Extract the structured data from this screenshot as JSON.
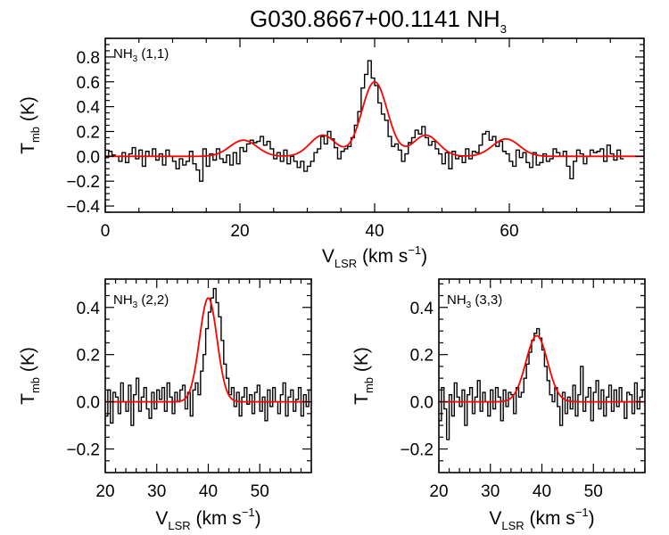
{
  "figure": {
    "title": {
      "main": "G030.8667+00.1141 NH",
      "sub": "3"
    }
  },
  "chart_data": [
    {
      "type": "line",
      "panel_label": {
        "pre": "NH",
        "sub": "3",
        "post": " (1,1)"
      },
      "xlabel": {
        "pre": "V",
        "sub": "LSR",
        "post": " (km s",
        "sup": "−1",
        "close": ")"
      },
      "ylabel": {
        "pre": "T",
        "sub": "mb",
        "post": " (K)"
      },
      "xlim": [
        0,
        80
      ],
      "ylim": [
        -0.45,
        0.95
      ],
      "xticks": [
        0,
        20,
        40,
        60
      ],
      "xtick_labels": [
        "0",
        "20",
        "40",
        "60"
      ],
      "yticks": [
        -0.4,
        -0.2,
        0.0,
        0.2,
        0.4,
        0.6,
        0.8
      ],
      "ytick_labels": [
        "−0.4",
        "−0.2",
        "0.0",
        "0.2",
        "0.4",
        "0.6",
        "0.8"
      ],
      "series": [
        {
          "color": "#000000",
          "style": "histogram",
          "x_start": 0,
          "dx": 0.5,
          "y": [
            -0.01,
            0.04,
            0.01,
            0.0,
            -0.04,
            0.03,
            -0.05,
            0.02,
            0.07,
            -0.02,
            0.05,
            -0.08,
            0.04,
            0.0,
            0.06,
            -0.03,
            0.02,
            -0.07,
            0.05,
            0.0,
            -0.04,
            -0.1,
            -0.02,
            -0.07,
            -0.04,
            0.04,
            -0.06,
            -0.11,
            -0.2,
            0.06,
            -0.08,
            0.02,
            -0.03,
            0.06,
            -0.02,
            -0.05,
            0.01,
            -0.07,
            0.03,
            -0.06,
            0.07,
            0.04,
            0.1,
            0.13,
            0.11,
            0.12,
            0.16,
            0.09,
            0.12,
            0.06,
            -0.02,
            0.03,
            -0.04,
            0.05,
            -0.06,
            0.0,
            -0.04,
            -0.09,
            -0.04,
            -0.12,
            -0.08,
            -0.04,
            0.03,
            0.06,
            0.16,
            0.1,
            0.2,
            0.14,
            0.07,
            -0.02,
            0.04,
            0.06,
            0.08,
            0.15,
            0.25,
            0.36,
            0.55,
            0.66,
            0.77,
            0.63,
            0.57,
            0.43,
            0.34,
            0.29,
            0.16,
            0.08,
            0.1,
            0.05,
            -0.04,
            0.02,
            0.11,
            0.15,
            0.21,
            0.18,
            0.24,
            0.15,
            0.09,
            0.12,
            0.06,
            0.02,
            -0.06,
            0.03,
            -0.1,
            0.04,
            -0.02,
            0.0,
            -0.05,
            0.06,
            -0.02,
            0.04,
            0.03,
            0.09,
            0.18,
            0.2,
            0.13,
            0.16,
            0.08,
            0.12,
            0.04,
            0.02,
            -0.04,
            -0.08,
            0.05,
            -0.01,
            0.03,
            -0.05,
            -0.09,
            0.03,
            -0.07,
            -0.05,
            0.02,
            -0.04,
            -0.02,
            0.06,
            0.03,
            0.0,
            0.04,
            -0.08,
            -0.18,
            -0.04,
            0.05,
            0.02,
            -0.06,
            0.0,
            0.05,
            0.03,
            0.04,
            0.06,
            -0.04,
            0.09,
            0.02,
            -0.03,
            0.05,
            -0.02
          ]
        },
        {
          "color": "#ff0000",
          "style": "gaussian_fit",
          "components": [
            {
              "center": 20.5,
              "amp": 0.13,
              "sigma": 2.0
            },
            {
              "center": 32.3,
              "amp": 0.17,
              "sigma": 1.9
            },
            {
              "center": 40.0,
              "amp": 0.6,
              "sigma": 1.9
            },
            {
              "center": 47.6,
              "amp": 0.17,
              "sigma": 1.9
            },
            {
              "center": 59.5,
              "amp": 0.14,
              "sigma": 2.0
            }
          ]
        }
      ]
    },
    {
      "type": "line",
      "panel_label": {
        "pre": "NH",
        "sub": "3",
        "post": " (2,2)"
      },
      "xlabel": {
        "pre": "V",
        "sub": "LSR",
        "post": " (km s",
        "sup": "−1",
        "close": ")"
      },
      "ylabel": {
        "pre": "T",
        "sub": "mb",
        "post": " (K)"
      },
      "xlim": [
        20,
        60
      ],
      "ylim": [
        -0.3,
        0.52
      ],
      "xticks": [
        20,
        30,
        40,
        50
      ],
      "xtick_labels": [
        "20",
        "30",
        "40",
        "50"
      ],
      "yticks": [
        -0.2,
        0.0,
        0.2,
        0.4
      ],
      "ytick_labels": [
        "−0.2",
        "0.0",
        "0.2",
        "0.4"
      ],
      "series": [
        {
          "color": "#000000",
          "style": "histogram",
          "x_start": 20,
          "dx": 0.5,
          "y": [
            -0.06,
            0.05,
            -0.09,
            0.04,
            0.02,
            -0.05,
            0.08,
            0.0,
            -0.04,
            0.07,
            -0.1,
            0.03,
            0.1,
            -0.04,
            0.02,
            0.06,
            -0.03,
            -0.07,
            0.04,
            -0.03,
            0.05,
            0.01,
            0.06,
            -0.04,
            0.08,
            0.02,
            -0.05,
            0.04,
            0.0,
            0.05,
            0.07,
            -0.03,
            0.04,
            -0.06,
            0.05,
            0.08,
            0.03,
            0.13,
            0.2,
            0.31,
            0.38,
            0.44,
            0.48,
            0.42,
            0.36,
            0.26,
            0.16,
            0.1,
            0.03,
            0.06,
            -0.02,
            0.04,
            -0.06,
            0.02,
            0.06,
            -0.01,
            0.03,
            -0.05,
            0.04,
            0.07,
            -0.04,
            0.02,
            -0.08,
            0.05,
            -0.02,
            0.06,
            0.0,
            -0.05,
            0.03,
            0.08,
            -0.06,
            0.02,
            0.05,
            -0.04,
            0.01,
            0.06,
            -0.06,
            0.03,
            -0.02,
            0.05
          ]
        },
        {
          "color": "#ff0000",
          "style": "gaussian_fit",
          "components": [
            {
              "center": 40.0,
              "amp": 0.44,
              "sigma": 1.7
            }
          ]
        }
      ]
    },
    {
      "type": "line",
      "panel_label": {
        "pre": "NH",
        "sub": "3",
        "post": " (3,3)"
      },
      "xlabel": {
        "pre": "V",
        "sub": "LSR",
        "post": " (km s",
        "sup": "−1",
        "close": ")"
      },
      "ylabel": {
        "pre": "T",
        "sub": "mb",
        "post": " (K)"
      },
      "xlim": [
        20,
        60
      ],
      "ylim": [
        -0.3,
        0.52
      ],
      "xticks": [
        20,
        30,
        40,
        50
      ],
      "xtick_labels": [
        "20",
        "30",
        "40",
        "50"
      ],
      "yticks": [
        -0.2,
        0.0,
        0.2,
        0.4
      ],
      "ytick_labels": [
        "−0.2",
        "0.0",
        "0.2",
        "0.4"
      ],
      "series": [
        {
          "color": "#000000",
          "style": "histogram",
          "x_start": 20,
          "dx": 0.5,
          "y": [
            -0.08,
            0.06,
            -0.03,
            -0.16,
            0.03,
            -0.06,
            0.08,
            0.02,
            -0.02,
            0.05,
            -0.1,
            0.03,
            0.06,
            -0.05,
            0.02,
            0.09,
            -0.04,
            0.04,
            0.0,
            -0.06,
            0.05,
            -0.03,
            0.06,
            0.02,
            -0.08,
            0.05,
            -0.02,
            0.04,
            0.03,
            -0.05,
            0.06,
            0.02,
            0.04,
            0.1,
            0.16,
            0.21,
            0.26,
            0.29,
            0.31,
            0.27,
            0.22,
            0.15,
            0.09,
            0.03,
            0.0,
            0.06,
            -0.02,
            -0.1,
            0.04,
            -0.05,
            0.02,
            -0.03,
            0.07,
            -0.06,
            0.03,
            0.15,
            -0.04,
            0.02,
            0.06,
            -0.08,
            0.04,
            0.09,
            -0.03,
            0.05,
            -0.06,
            0.02,
            0.07,
            -0.04,
            0.05,
            -0.02,
            0.06,
            0.0,
            -0.07,
            0.04,
            0.03,
            -0.05,
            0.08,
            -0.03,
            0.02,
            0.05
          ]
        },
        {
          "color": "#ff0000",
          "style": "gaussian_fit",
          "components": [
            {
              "center": 39.0,
              "amp": 0.28,
              "sigma": 2.1
            }
          ]
        }
      ]
    }
  ]
}
